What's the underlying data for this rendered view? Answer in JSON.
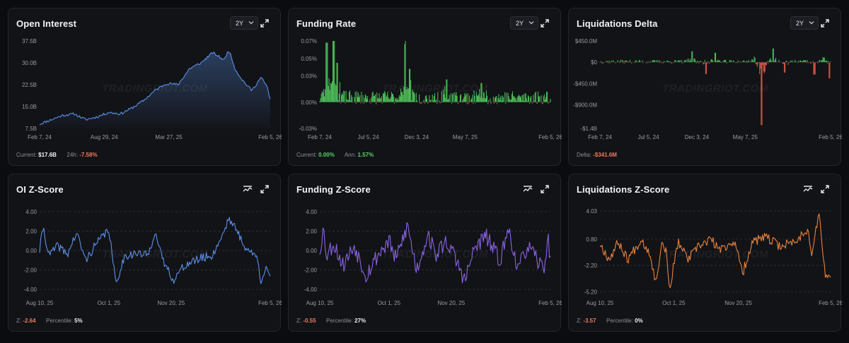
{
  "watermark": "TRADINGRIOT.COM",
  "colors": {
    "blue": "#5b8fe6",
    "green": "#4fc35a",
    "red": "#e05a47",
    "purple": "#8a63e6",
    "orange": "#e8823d",
    "grid": "#2f3138"
  },
  "panels": {
    "oi": {
      "title": "Open Interest",
      "range": "2Y",
      "footer": {
        "current_label": "Current:",
        "current_value": "$17.6B",
        "change_label": "24h:",
        "change_value": "-7.58%"
      }
    },
    "fr": {
      "title": "Funding Rate",
      "range": "2Y",
      "footer": {
        "current_label": "Current:",
        "current_value": "0.00%",
        "ann_label": "Ann:",
        "ann_value": "1.57%"
      }
    },
    "ld": {
      "title": "Liquidations Delta",
      "range": "2Y",
      "footer": {
        "delta_label": "Delta:",
        "delta_value": "-$341.6M"
      }
    },
    "oiz": {
      "title": "OI Z-Score",
      "footer": {
        "z_label": "Z:",
        "z_value": "-2.64",
        "pct_label": "Percentile:",
        "pct_value": "5%"
      }
    },
    "frz": {
      "title": "Funding Z-Score",
      "footer": {
        "z_label": "Z:",
        "z_value": "-0.55",
        "pct_label": "Percentile:",
        "pct_value": "27%"
      }
    },
    "ldz": {
      "title": "Liquidations Z-Score",
      "footer": {
        "z_label": "Z:",
        "z_value": "-3.57",
        "pct_label": "Percentile:",
        "pct_value": "0%"
      }
    }
  },
  "chart_data": [
    {
      "id": "oi",
      "type": "area",
      "title": "Open Interest",
      "yticks": [
        7.5,
        15.0,
        22.5,
        30.0,
        37.5
      ],
      "ytick_labels": [
        "7.5B",
        "15.0B",
        "22.5B",
        "30.0B",
        "37.5B"
      ],
      "ylim": [
        7.5,
        37.5
      ],
      "xtick_labels": [
        "Feb 7, 24",
        "Aug 29, 24",
        "Mar 27, 25",
        "Feb 5, 26"
      ],
      "xtick_positions": [
        0,
        0.28,
        0.56,
        1
      ],
      "series": [
        {
          "name": "Open Interest ($B)",
          "anchors": [
            [
              0,
              9.0
            ],
            [
              0.05,
              10.5
            ],
            [
              0.1,
              12.0
            ],
            [
              0.15,
              12.5
            ],
            [
              0.2,
              10.5
            ],
            [
              0.25,
              11.5
            ],
            [
              0.3,
              13.0
            ],
            [
              0.35,
              12.5
            ],
            [
              0.4,
              14.5
            ],
            [
              0.45,
              17.0
            ],
            [
              0.5,
              20.5
            ],
            [
              0.55,
              23.0
            ],
            [
              0.6,
              22.5
            ],
            [
              0.65,
              28.0
            ],
            [
              0.7,
              30.0
            ],
            [
              0.75,
              33.5
            ],
            [
              0.8,
              31.0
            ],
            [
              0.82,
              34.5
            ],
            [
              0.85,
              27.5
            ],
            [
              0.88,
              24.0
            ],
            [
              0.92,
              20.5
            ],
            [
              0.96,
              25.0
            ],
            [
              0.985,
              22.0
            ],
            [
              1,
              17.6
            ]
          ]
        }
      ]
    },
    {
      "id": "fr",
      "type": "bar",
      "title": "Funding Rate",
      "yticks": [
        -0.03,
        0.0,
        0.03,
        0.05,
        0.07
      ],
      "ytick_labels": [
        "-0.03%",
        "0.00%",
        "0.03%",
        "0.05%",
        "0.07%"
      ],
      "ylim": [
        -0.03,
        0.07
      ],
      "xtick_labels": [
        "Feb 7, 24",
        "Jul 5, 24",
        "Dec 3, 24",
        "May 7, 25",
        "Feb 5, 26"
      ],
      "xtick_positions": [
        0,
        0.21,
        0.42,
        0.63,
        1
      ],
      "series": [
        {
          "name": "Funding Rate (%)",
          "spikes": [
            [
              0.03,
              0.068
            ],
            [
              0.06,
              0.084
            ],
            [
              0.075,
              0.045
            ],
            [
              0.37,
              0.066
            ],
            [
              0.39,
              0.038
            ],
            [
              0.55,
              0.026
            ],
            [
              0.7,
              0.022
            ]
          ],
          "baseline": 0.003,
          "noise": 0.008
        }
      ]
    },
    {
      "id": "ld",
      "type": "bar",
      "title": "Liquidations Delta",
      "yticks": [
        -1400,
        -900,
        -450,
        0,
        450
      ],
      "ytick_labels": [
        "-$1.4B",
        "-$900.0M",
        "-$450.0M",
        "$0",
        "$450.0M"
      ],
      "ylim": [
        -1400,
        450
      ],
      "xtick_labels": [
        "Feb 7, 24",
        "Jul 5, 24",
        "Dec 3, 24",
        "May 7, 25",
        "Feb 5, 26"
      ],
      "xtick_positions": [
        0,
        0.21,
        0.42,
        0.63,
        1
      ],
      "series": [
        {
          "name": "Liquidations Delta ($M)",
          "spikes": [
            [
              0.4,
              230
            ],
            [
              0.46,
              -250
            ],
            [
              0.5,
              200
            ],
            [
              0.67,
              120
            ],
            [
              0.7,
              -1330
            ],
            [
              0.75,
              290
            ],
            [
              0.8,
              -220
            ],
            [
              0.93,
              -260
            ],
            [
              0.97,
              110
            ],
            [
              0.995,
              -340
            ]
          ],
          "noise": 40
        }
      ]
    },
    {
      "id": "oiz",
      "type": "line",
      "title": "OI Z-Score",
      "yticks": [
        -4,
        -2,
        0,
        2,
        4
      ],
      "ytick_labels": [
        "-4.00",
        "-2.00",
        "0.00",
        "2.00",
        "4.00"
      ],
      "ylim": [
        -4.5,
        4.5
      ],
      "xtick_labels": [
        "Aug 10, 25",
        "Oct 1, 25",
        "Nov 20, 25",
        "Feb 5, 26"
      ],
      "xtick_positions": [
        0,
        0.3,
        0.57,
        1
      ],
      "series": [
        {
          "name": "OI Z",
          "anchors": [
            [
              0,
              0.0
            ],
            [
              0.015,
              2.5
            ],
            [
              0.04,
              -0.5
            ],
            [
              0.08,
              0.5
            ],
            [
              0.12,
              -0.4
            ],
            [
              0.16,
              1.8
            ],
            [
              0.2,
              -1.0
            ],
            [
              0.24,
              0.5
            ],
            [
              0.3,
              2.2
            ],
            [
              0.33,
              -3.4
            ],
            [
              0.37,
              -0.5
            ],
            [
              0.42,
              -0.3
            ],
            [
              0.47,
              -0.5
            ],
            [
              0.5,
              2.0
            ],
            [
              0.53,
              -0.8
            ],
            [
              0.58,
              -3.0
            ],
            [
              0.63,
              -1.5
            ],
            [
              0.7,
              -0.8
            ],
            [
              0.75,
              -0.5
            ],
            [
              0.8,
              2.0
            ],
            [
              0.82,
              3.4
            ],
            [
              0.86,
              1.8
            ],
            [
              0.9,
              0.0
            ],
            [
              0.94,
              -0.5
            ],
            [
              0.96,
              -3.2
            ],
            [
              0.98,
              -1.5
            ],
            [
              1,
              -2.64
            ]
          ],
          "noise": 0.45
        }
      ]
    },
    {
      "id": "frz",
      "type": "line",
      "title": "Funding Z-Score",
      "yticks": [
        -4,
        -2,
        0,
        2,
        4
      ],
      "ytick_labels": [
        "-4.00",
        "-2.00",
        "0.00",
        "2.00",
        "4.00"
      ],
      "ylim": [
        -4.5,
        4.5
      ],
      "xtick_labels": [
        "Aug 10, 25",
        "Oct 1, 25",
        "Nov 20, 25",
        "Feb 5, 26"
      ],
      "xtick_positions": [
        0,
        0.3,
        0.57,
        1
      ],
      "series": [
        {
          "name": "Funding Z",
          "anchors": [
            [
              0,
              0.0
            ],
            [
              0.015,
              2.3
            ],
            [
              0.03,
              -0.5
            ],
            [
              0.06,
              0.8
            ],
            [
              0.1,
              -1.5
            ],
            [
              0.15,
              0.5
            ],
            [
              0.2,
              -2.5
            ],
            [
              0.25,
              -0.5
            ],
            [
              0.3,
              1.0
            ],
            [
              0.33,
              -1.0
            ],
            [
              0.38,
              2.6
            ],
            [
              0.42,
              -2.0
            ],
            [
              0.47,
              1.8
            ],
            [
              0.5,
              -0.5
            ],
            [
              0.55,
              1.0
            ],
            [
              0.6,
              -1.5
            ],
            [
              0.63,
              -3.1
            ],
            [
              0.67,
              0.2
            ],
            [
              0.72,
              1.5
            ],
            [
              0.78,
              -1.0
            ],
            [
              0.82,
              2.2
            ],
            [
              0.86,
              -2.1
            ],
            [
              0.9,
              0.5
            ],
            [
              0.94,
              -1.0
            ],
            [
              0.97,
              -1.8
            ],
            [
              0.99,
              1.0
            ],
            [
              1,
              -0.55
            ]
          ],
          "noise": 0.9
        }
      ]
    },
    {
      "id": "ldz",
      "type": "line",
      "title": "Liquidations Z-Score",
      "yticks": [
        -5.2,
        -2.2,
        0.8,
        4.03
      ],
      "ytick_labels": [
        "-5.20",
        "-2.20",
        "0.80",
        "4.03"
      ],
      "ylim": [
        -5.5,
        4.5
      ],
      "xtick_labels": [
        "Aug 10, 25",
        "Oct 1, 25",
        "Nov 20, 25",
        "Feb 5, 26"
      ],
      "xtick_positions": [
        0,
        0.32,
        0.6,
        1
      ],
      "series": [
        {
          "name": "Liquidations Z",
          "anchors": [
            [
              0,
              0.3
            ],
            [
              0.04,
              -1.5
            ],
            [
              0.08,
              0.5
            ],
            [
              0.12,
              -1.5
            ],
            [
              0.18,
              0.8
            ],
            [
              0.22,
              -1.0
            ],
            [
              0.24,
              -4.2
            ],
            [
              0.27,
              0.5
            ],
            [
              0.29,
              -0.8
            ],
            [
              0.3,
              -5.0
            ],
            [
              0.34,
              0.5
            ],
            [
              0.38,
              -1.5
            ],
            [
              0.43,
              0.0
            ],
            [
              0.48,
              0.8
            ],
            [
              0.52,
              -0.5
            ],
            [
              0.58,
              0.6
            ],
            [
              0.62,
              -3.0
            ],
            [
              0.66,
              0.5
            ],
            [
              0.72,
              1.0
            ],
            [
              0.78,
              0.0
            ],
            [
              0.85,
              0.6
            ],
            [
              0.9,
              2.0
            ],
            [
              0.92,
              -1.0
            ],
            [
              0.95,
              4.0
            ],
            [
              0.97,
              -2.0
            ],
            [
              0.98,
              -3.5
            ],
            [
              1,
              -3.57
            ]
          ],
          "noise": 0.55
        }
      ]
    }
  ]
}
